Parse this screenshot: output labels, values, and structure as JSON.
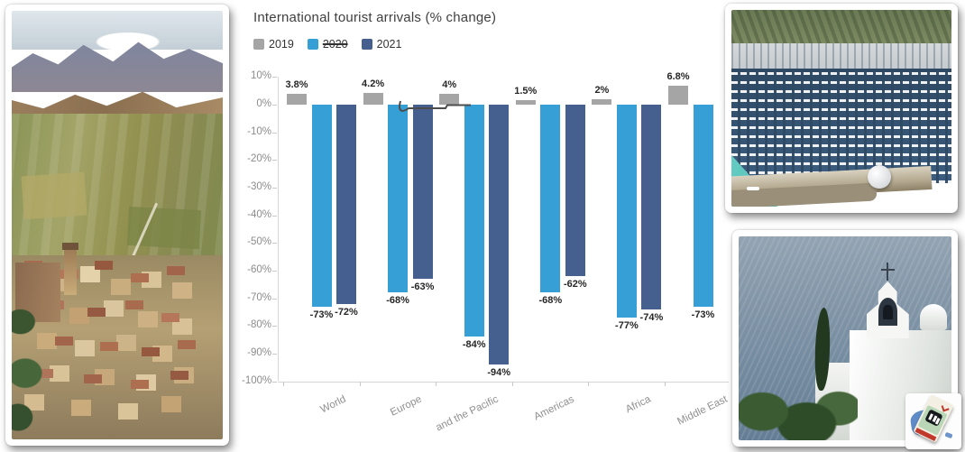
{
  "chart": {
    "title": "International tourist arrivals (% change)",
    "legend": [
      {
        "label": "2019",
        "color": "#a5a5a5",
        "strikethrough": false
      },
      {
        "label": "2020",
        "color": "#36a0d6",
        "strikethrough": true
      },
      {
        "label": "2021",
        "color": "#45608f",
        "strikethrough": false
      }
    ]
  },
  "chart_data": {
    "type": "bar",
    "title": "International tourist arrivals (% change)",
    "categories": [
      "World",
      "Europe",
      "and the Pacific",
      "Americas",
      "Africa",
      "Middle East"
    ],
    "series": [
      {
        "name": "2019",
        "color": "#a5a5a5",
        "values": [
          3.8,
          4.2,
          4,
          1.5,
          2,
          6.8
        ],
        "labels": [
          "3.8%",
          "4.2%",
          "4%",
          "1.5%",
          "2%",
          "6.8%"
        ]
      },
      {
        "name": "2020",
        "color": "#36a0d6",
        "values": [
          -73,
          -68,
          -84,
          -68,
          -77,
          -73
        ],
        "labels": [
          "-73%",
          "-68%",
          "-84%",
          "-68%",
          "-77%",
          "-73%"
        ]
      },
      {
        "name": "2021",
        "color": "#45608f",
        "values": [
          -72,
          -63,
          -94,
          -62,
          -74,
          null
        ],
        "labels": [
          "-72%",
          "-63%",
          "-94%",
          "-62%",
          "-74%",
          null
        ]
      }
    ],
    "y_ticks": [
      "10%",
      "0%",
      "-10%",
      "-20%",
      "-30%",
      "-40%",
      "-50%",
      "-60%",
      "-70%",
      "-80%",
      "-90%",
      "-100%"
    ],
    "ylim": [
      -100,
      10
    ],
    "grid": false,
    "legend_position": "top-left",
    "annotation": "hand-drawn line near 0% between Europe and Asia-Pacific bars"
  },
  "photos": {
    "left": {
      "description": "aerial view of Sicilian hillside town with fields and mountains"
    },
    "top_right": {
      "description": "aerial view of marina full of white boats"
    },
    "bottom_right": {
      "description": "white island church with bell gable by the sea"
    }
  }
}
